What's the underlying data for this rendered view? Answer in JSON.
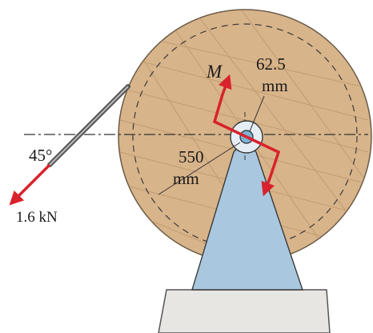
{
  "labels": {
    "moment": "M",
    "small_radius_value": "62.5",
    "small_radius_unit": "mm",
    "large_radius_value": "550",
    "large_radius_unit": "mm",
    "angle": "45°",
    "force": "1.6 kN"
  },
  "colors": {
    "disk_fill": "#d8b48a",
    "disk_grain": "#b48c62",
    "support_fill": "#a9c8df",
    "base_fill": "#e8e6e2",
    "arrow": "#d8222c",
    "line": "#2a2a2a"
  }
}
